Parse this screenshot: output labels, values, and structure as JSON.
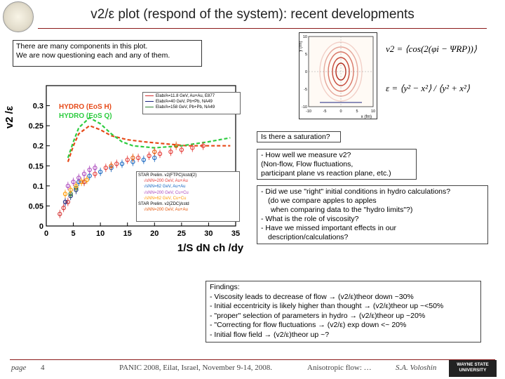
{
  "title": "v2/ε plot (respond of the system): recent developments",
  "note": [
    "There are many components in this plot.",
    "We are now questioning each and any of them."
  ],
  "hydro_labels": [
    "HYDRO (EoS H)",
    "HYDRO (EoS Q)"
  ],
  "colors": {
    "accent": "#8b1a1a",
    "hydro_h": "#e64a19",
    "hydro_q": "#2ecc40"
  },
  "legend_top": [
    {
      "label": "Elab/A=11.8 GeV, Au+Au, E877",
      "color": "#d32f2f"
    },
    {
      "label": "Elab/A=40 GeV, Pb+Pb, NA49",
      "color": "#1a237e"
    },
    {
      "label": "Elab/A=158 GeV, Pb+Pb, NA49",
      "color": "#2e7d32"
    }
  ],
  "star_legend": {
    "header1": "STAR Prelim. v2{FTPC}/εstd{2}",
    "rows1": [
      "√sNN=200 GeV, Au+Au",
      "√sNN=62 GeV, Au+Au",
      "√sNN=200 GeV, Cu+Cu",
      "√sNN=62 GeV, Cu+Cu"
    ],
    "header2": "STAR Prelim. v2{ZDC}/εstd",
    "rows2": [
      "√sNN=200 GeV, Au+Au"
    ]
  },
  "saturation_box": "Is there a saturation?",
  "measure_box": [
    "- How well we measure v2?",
    "(Non-flow, Flow fluctuations,",
    "participant plane vs reaction plane, etc.)"
  ],
  "questions_box": [
    "- Did we use \"right\" initial conditions in hydro calculations?",
    "(do we compare apples to apples",
    "when comparing data to the \"hydro limits\"?)",
    "- What is the role of viscosity?",
    "- Have we missed important effects in our",
    "description/calculations?"
  ],
  "findings": [
    "Findings:",
    "- Viscosity leads to decrease of flow → (v2/ε)theor down ~30%",
    "- Initial eccentricity is likely higher than thought → (v2/ε)theor up ~<50%",
    "- \"proper\" selection of parameters in hydro → (v2/ε)theor up ~20%",
    "- \"Correcting for flow fluctuations → (v2/ε) exp down <~ 20%",
    "- Initial flow field → (v2/ε)theor up ~?"
  ],
  "formulas": {
    "v2": "v2 = ⟨cos(2(φi − ΨRP))⟩",
    "epsilon": "ε = ⟨y² − x²⟩ / ⟨y² + x²⟩"
  },
  "footer": {
    "page_label": "page",
    "page_number": "4",
    "conference": "PANIC 2008, Eilat, Israel, November 9-14, 2008.",
    "topic": "Anisotropic flow: …",
    "author": "S.A. Voloshin",
    "logo_text": "WAYNE STATE UNIVERSITY"
  },
  "chart_data": [
    {
      "type": "scatter",
      "xlabel": "1/S dN ch /dy",
      "ylabel": "v2 /ε",
      "xlim": [
        0,
        35
      ],
      "ylim": [
        0,
        0.35
      ],
      "x_ticks": [
        0,
        5,
        10,
        15,
        20,
        25,
        30,
        35
      ],
      "y_ticks": [
        0,
        0.05,
        0.1,
        0.15,
        0.2,
        0.25,
        0.3
      ],
      "y_tick_labels": [
        "0",
        "0.05",
        "0.1",
        "0.15",
        "0.2",
        "0.25",
        "0.3"
      ],
      "lines": [
        {
          "name": "HYDRO (EoS H)",
          "color": "#e64a19",
          "x": [
            4,
            5,
            6,
            8,
            10,
            12,
            15,
            18,
            22,
            26,
            30,
            34
          ],
          "y": [
            0.16,
            0.2,
            0.23,
            0.25,
            0.24,
            0.225,
            0.215,
            0.21,
            0.205,
            0.2,
            0.2,
            0.2
          ]
        },
        {
          "name": "HYDRO (EoS Q)",
          "color": "#2ecc40",
          "x": [
            4,
            5,
            6,
            8,
            10,
            12,
            14,
            16,
            20,
            25,
            30,
            34
          ],
          "y": [
            0.17,
            0.21,
            0.245,
            0.27,
            0.255,
            0.23,
            0.21,
            0.2,
            0.195,
            0.2,
            0.21,
            0.22
          ]
        }
      ],
      "series": [
        {
          "name": "Elab/A=11.8 GeV, Au+Au, E877",
          "color": "#d32f2f",
          "x": [
            2.5,
            3.2,
            4.0
          ],
          "y": [
            0.03,
            0.045,
            0.06
          ]
        },
        {
          "name": "Elab/A=40 GeV, Pb+Pb, NA49",
          "color": "#1a237e",
          "x": [
            3.5,
            4.5,
            5.5
          ],
          "y": [
            0.06,
            0.075,
            0.09
          ]
        },
        {
          "name": "Elab/A=158 GeV, Pb+Pb, NA49",
          "color": "#2e7d32",
          "x": [
            4.5,
            5.5,
            7.0
          ],
          "y": [
            0.08,
            0.095,
            0.11
          ]
        },
        {
          "name": "√sNN=200 GeV, Au+Au",
          "color": "#e53935",
          "x": [
            7,
            9,
            11,
            13,
            15,
            17,
            19,
            21,
            23,
            25,
            27,
            29
          ],
          "y": [
            0.11,
            0.13,
            0.145,
            0.155,
            0.165,
            0.17,
            0.175,
            0.18,
            0.185,
            0.19,
            0.195,
            0.2
          ]
        },
        {
          "name": "√sNN=62 GeV, Au+Au",
          "color": "#1565c0",
          "x": [
            6,
            8,
            10,
            12,
            14,
            16,
            18,
            20
          ],
          "y": [
            0.11,
            0.125,
            0.135,
            0.145,
            0.155,
            0.16,
            0.165,
            0.17
          ]
        },
        {
          "name": "√sNN=200 GeV, Cu+Cu",
          "color": "#ab47bc",
          "x": [
            4,
            5,
            6,
            7,
            8,
            9
          ],
          "y": [
            0.1,
            0.11,
            0.12,
            0.13,
            0.14,
            0.145
          ]
        },
        {
          "name": "√sNN=62 GeV, Cu+Cu",
          "color": "#ff9800",
          "x": [
            3.5,
            4.5,
            5.5,
            6.5,
            7.5
          ],
          "y": [
            0.08,
            0.09,
            0.1,
            0.11,
            0.115
          ]
        },
        {
          "name": "√sNN=200 GeV, Au+Au (ZDC)",
          "color": "#e65100",
          "x": [
            12,
            16,
            20,
            24
          ],
          "y": [
            0.15,
            0.17,
            0.185,
            0.2
          ]
        }
      ]
    },
    {
      "type": "heatmap",
      "xlabel": "x (fm)",
      "ylabel": "y (fm)",
      "xlim": [
        -10,
        10
      ],
      "ylim": [
        -10,
        10
      ],
      "x_tick_labels": [
        "-10",
        "-5",
        "0",
        "5",
        "10"
      ],
      "y_tick_labels": [
        "-10",
        "-5",
        "0",
        "5",
        "10"
      ]
    }
  ]
}
